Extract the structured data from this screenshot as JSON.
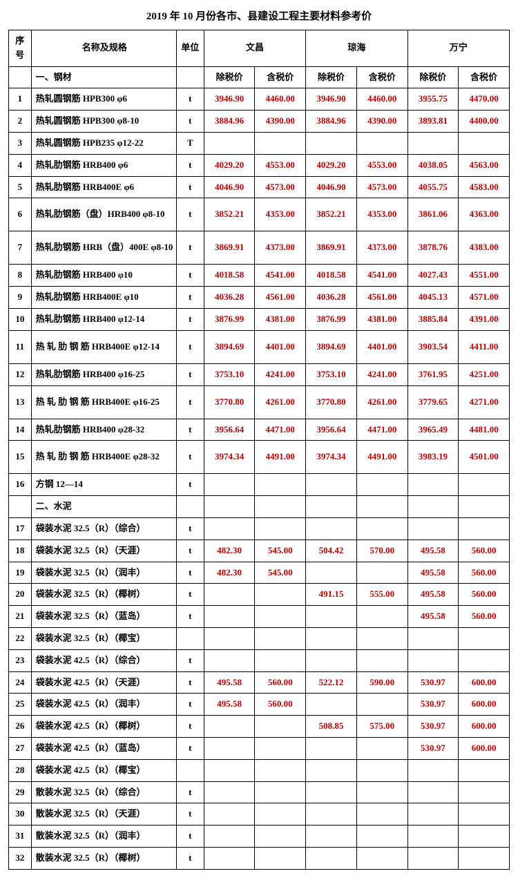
{
  "title": "2019 年 10 月份各市、县建设工程主要材料参考价",
  "header": {
    "seq": "序号",
    "name": "名称及规格",
    "unit": "单位",
    "cities": [
      "文昌",
      "琼海",
      "万宁"
    ],
    "sub": [
      "除税价",
      "含税价"
    ]
  },
  "colors": {
    "price": "#c00000",
    "border": "#000000",
    "text": "#000000",
    "bg": "#ffffff"
  },
  "rows": [
    {
      "type": "section",
      "label": "一、钢材"
    },
    {
      "n": "1",
      "name": "热轧圆钢筋 HPB300 φ6",
      "u": "t",
      "p": [
        "3946.90",
        "4460.00",
        "3946.90",
        "4460.00",
        "3955.75",
        "4470.00"
      ]
    },
    {
      "n": "2",
      "name": "热轧圆钢筋 HPB300 φ8-10",
      "u": "t",
      "p": [
        "3884.96",
        "4390.00",
        "3884.96",
        "4390.00",
        "3893.81",
        "4400.00"
      ]
    },
    {
      "n": "3",
      "name": "热轧圆钢筋 HPB235 φ12-22",
      "u": "T",
      "p": [
        "",
        "",
        "",
        "",
        "",
        ""
      ]
    },
    {
      "n": "4",
      "name": "热轧肋钢筋 HRB400 φ6",
      "u": "t",
      "p": [
        "4029.20",
        "4553.00",
        "4029.20",
        "4553.00",
        "4038.05",
        "4563.00"
      ]
    },
    {
      "n": "5",
      "name": "热轧肋钢筋 HRB400E φ6",
      "u": "t",
      "p": [
        "4046.90",
        "4573.00",
        "4046.90",
        "4573.00",
        "4055.75",
        "4583.00"
      ]
    },
    {
      "n": "6",
      "name": "热轧肋钢筋（盘）HRB400 φ8-10",
      "u": "t",
      "tall": true,
      "p": [
        "3852.21",
        "4353.00",
        "3852.21",
        "4353.00",
        "3861.06",
        "4363.00"
      ]
    },
    {
      "n": "7",
      "name": "热轧肋钢筋 HRB（盘）400E φ8-10",
      "u": "t",
      "tall": true,
      "p": [
        "3869.91",
        "4373.00",
        "3869.91",
        "4373.00",
        "3878.76",
        "4383.00"
      ]
    },
    {
      "n": "8",
      "name": "热轧肋钢筋 HRB400 φ10",
      "u": "t",
      "p": [
        "4018.58",
        "4541.00",
        "4018.58",
        "4541.00",
        "4027.43",
        "4551.00"
      ]
    },
    {
      "n": "9",
      "name": "热轧肋钢筋 HRB400E φ10",
      "u": "t",
      "p": [
        "4036.28",
        "4561.00",
        "4036.28",
        "4561.00",
        "4045.13",
        "4571.00"
      ]
    },
    {
      "n": "10",
      "name": "热轧肋钢筋 HRB400 φ12-14",
      "u": "t",
      "p": [
        "3876.99",
        "4381.00",
        "3876.99",
        "4381.00",
        "3885.84",
        "4391.00"
      ]
    },
    {
      "n": "11",
      "name": "热 轧 肋 钢 筋  HRB400E φ12-14",
      "u": "t",
      "tall": true,
      "p": [
        "3894.69",
        "4401.00",
        "3894.69",
        "4401.00",
        "3903.54",
        "4411.00"
      ]
    },
    {
      "n": "12",
      "name": "热轧肋钢筋 HRB400 φ16-25",
      "u": "t",
      "p": [
        "3753.10",
        "4241.00",
        "3753.10",
        "4241.00",
        "3761.95",
        "4251.00"
      ]
    },
    {
      "n": "13",
      "name": "热 轧 肋 钢 筋  HRB400E φ16-25",
      "u": "t",
      "tall": true,
      "p": [
        "3770.80",
        "4261.00",
        "3770.80",
        "4261.00",
        "3779.65",
        "4271.00"
      ]
    },
    {
      "n": "14",
      "name": "热轧肋钢筋 HRB400 φ28-32",
      "u": "t",
      "p": [
        "3956.64",
        "4471.00",
        "3956.64",
        "4471.00",
        "3965.49",
        "4481.00"
      ]
    },
    {
      "n": "15",
      "name": "热 轧 肋 钢 筋  HRB400E φ28-32",
      "u": "t",
      "tall": true,
      "p": [
        "3974.34",
        "4491.00",
        "3974.34",
        "4491.00",
        "3983.19",
        "4501.00"
      ]
    },
    {
      "n": "16",
      "name": "方钢 12—14",
      "u": "t",
      "p": [
        "",
        "",
        "",
        "",
        "",
        ""
      ]
    },
    {
      "type": "section",
      "label": "二、水泥"
    },
    {
      "n": "17",
      "name": "袋装水泥 32.5（R）（综合）",
      "u": "t",
      "p": [
        "",
        "",
        "",
        "",
        "",
        ""
      ]
    },
    {
      "n": "18",
      "name": "袋装水泥 32.5（R）（天涯）",
      "u": "t",
      "p": [
        "482.30",
        "545.00",
        "504.42",
        "570.00",
        "495.58",
        "560.00"
      ]
    },
    {
      "n": "19",
      "name": "袋装水泥 32.5（R）（润丰）",
      "u": "t",
      "p": [
        "482.30",
        "545.00",
        "",
        "",
        "495.58",
        "560.00"
      ]
    },
    {
      "n": "20",
      "name": "袋装水泥 32.5（R）（椰树）",
      "u": "t",
      "p": [
        "",
        "",
        "491.15",
        "555.00",
        "495.58",
        "560.00"
      ]
    },
    {
      "n": "21",
      "name": "袋装水泥 32.5（R）（蓝岛）",
      "u": "t",
      "p": [
        "",
        "",
        "",
        "",
        "495.58",
        "560.00"
      ]
    },
    {
      "n": "22",
      "name": "袋装水泥 32.5（R）（椰宝）",
      "u": "",
      "p": [
        "",
        "",
        "",
        "",
        "",
        ""
      ]
    },
    {
      "n": "23",
      "name": "袋装水泥 42.5（R）（综合）",
      "u": "t",
      "p": [
        "",
        "",
        "",
        "",
        "",
        ""
      ]
    },
    {
      "n": "24",
      "name": "袋装水泥 42.5（R）（天涯）",
      "u": "t",
      "p": [
        "495.58",
        "560.00",
        "522.12",
        "590.00",
        "530.97",
        "600.00"
      ]
    },
    {
      "n": "25",
      "name": "袋装水泥 42.5（R）（润丰）",
      "u": "t",
      "p": [
        "495.58",
        "560.00",
        "",
        "",
        "530.97",
        "600.00"
      ]
    },
    {
      "n": "26",
      "name": "袋装水泥 42.5（R）（椰树）",
      "u": "t",
      "p": [
        "",
        "",
        "508.85",
        "575.00",
        "530.97",
        "600.00"
      ]
    },
    {
      "n": "27",
      "name": "袋装水泥 42.5（R）（蓝岛）",
      "u": "t",
      "p": [
        "",
        "",
        "",
        "",
        "530.97",
        "600.00"
      ]
    },
    {
      "n": "28",
      "name": "袋装水泥 42.5（R）（椰宝）",
      "u": "",
      "p": [
        "",
        "",
        "",
        "",
        "",
        ""
      ]
    },
    {
      "n": "29",
      "name": "散装水泥 32.5（R）（综合）",
      "u": "t",
      "p": [
        "",
        "",
        "",
        "",
        "",
        ""
      ]
    },
    {
      "n": "30",
      "name": "散装水泥 32.5（R）（天涯）",
      "u": "t",
      "p": [
        "",
        "",
        "",
        "",
        "",
        ""
      ]
    },
    {
      "n": "31",
      "name": "散装水泥 32.5（R）（润丰）",
      "u": "t",
      "p": [
        "",
        "",
        "",
        "",
        "",
        ""
      ]
    },
    {
      "n": "32",
      "name": "散装水泥 32.5（R）（椰树）",
      "u": "t",
      "p": [
        "",
        "",
        "",
        "",
        "",
        ""
      ]
    }
  ]
}
